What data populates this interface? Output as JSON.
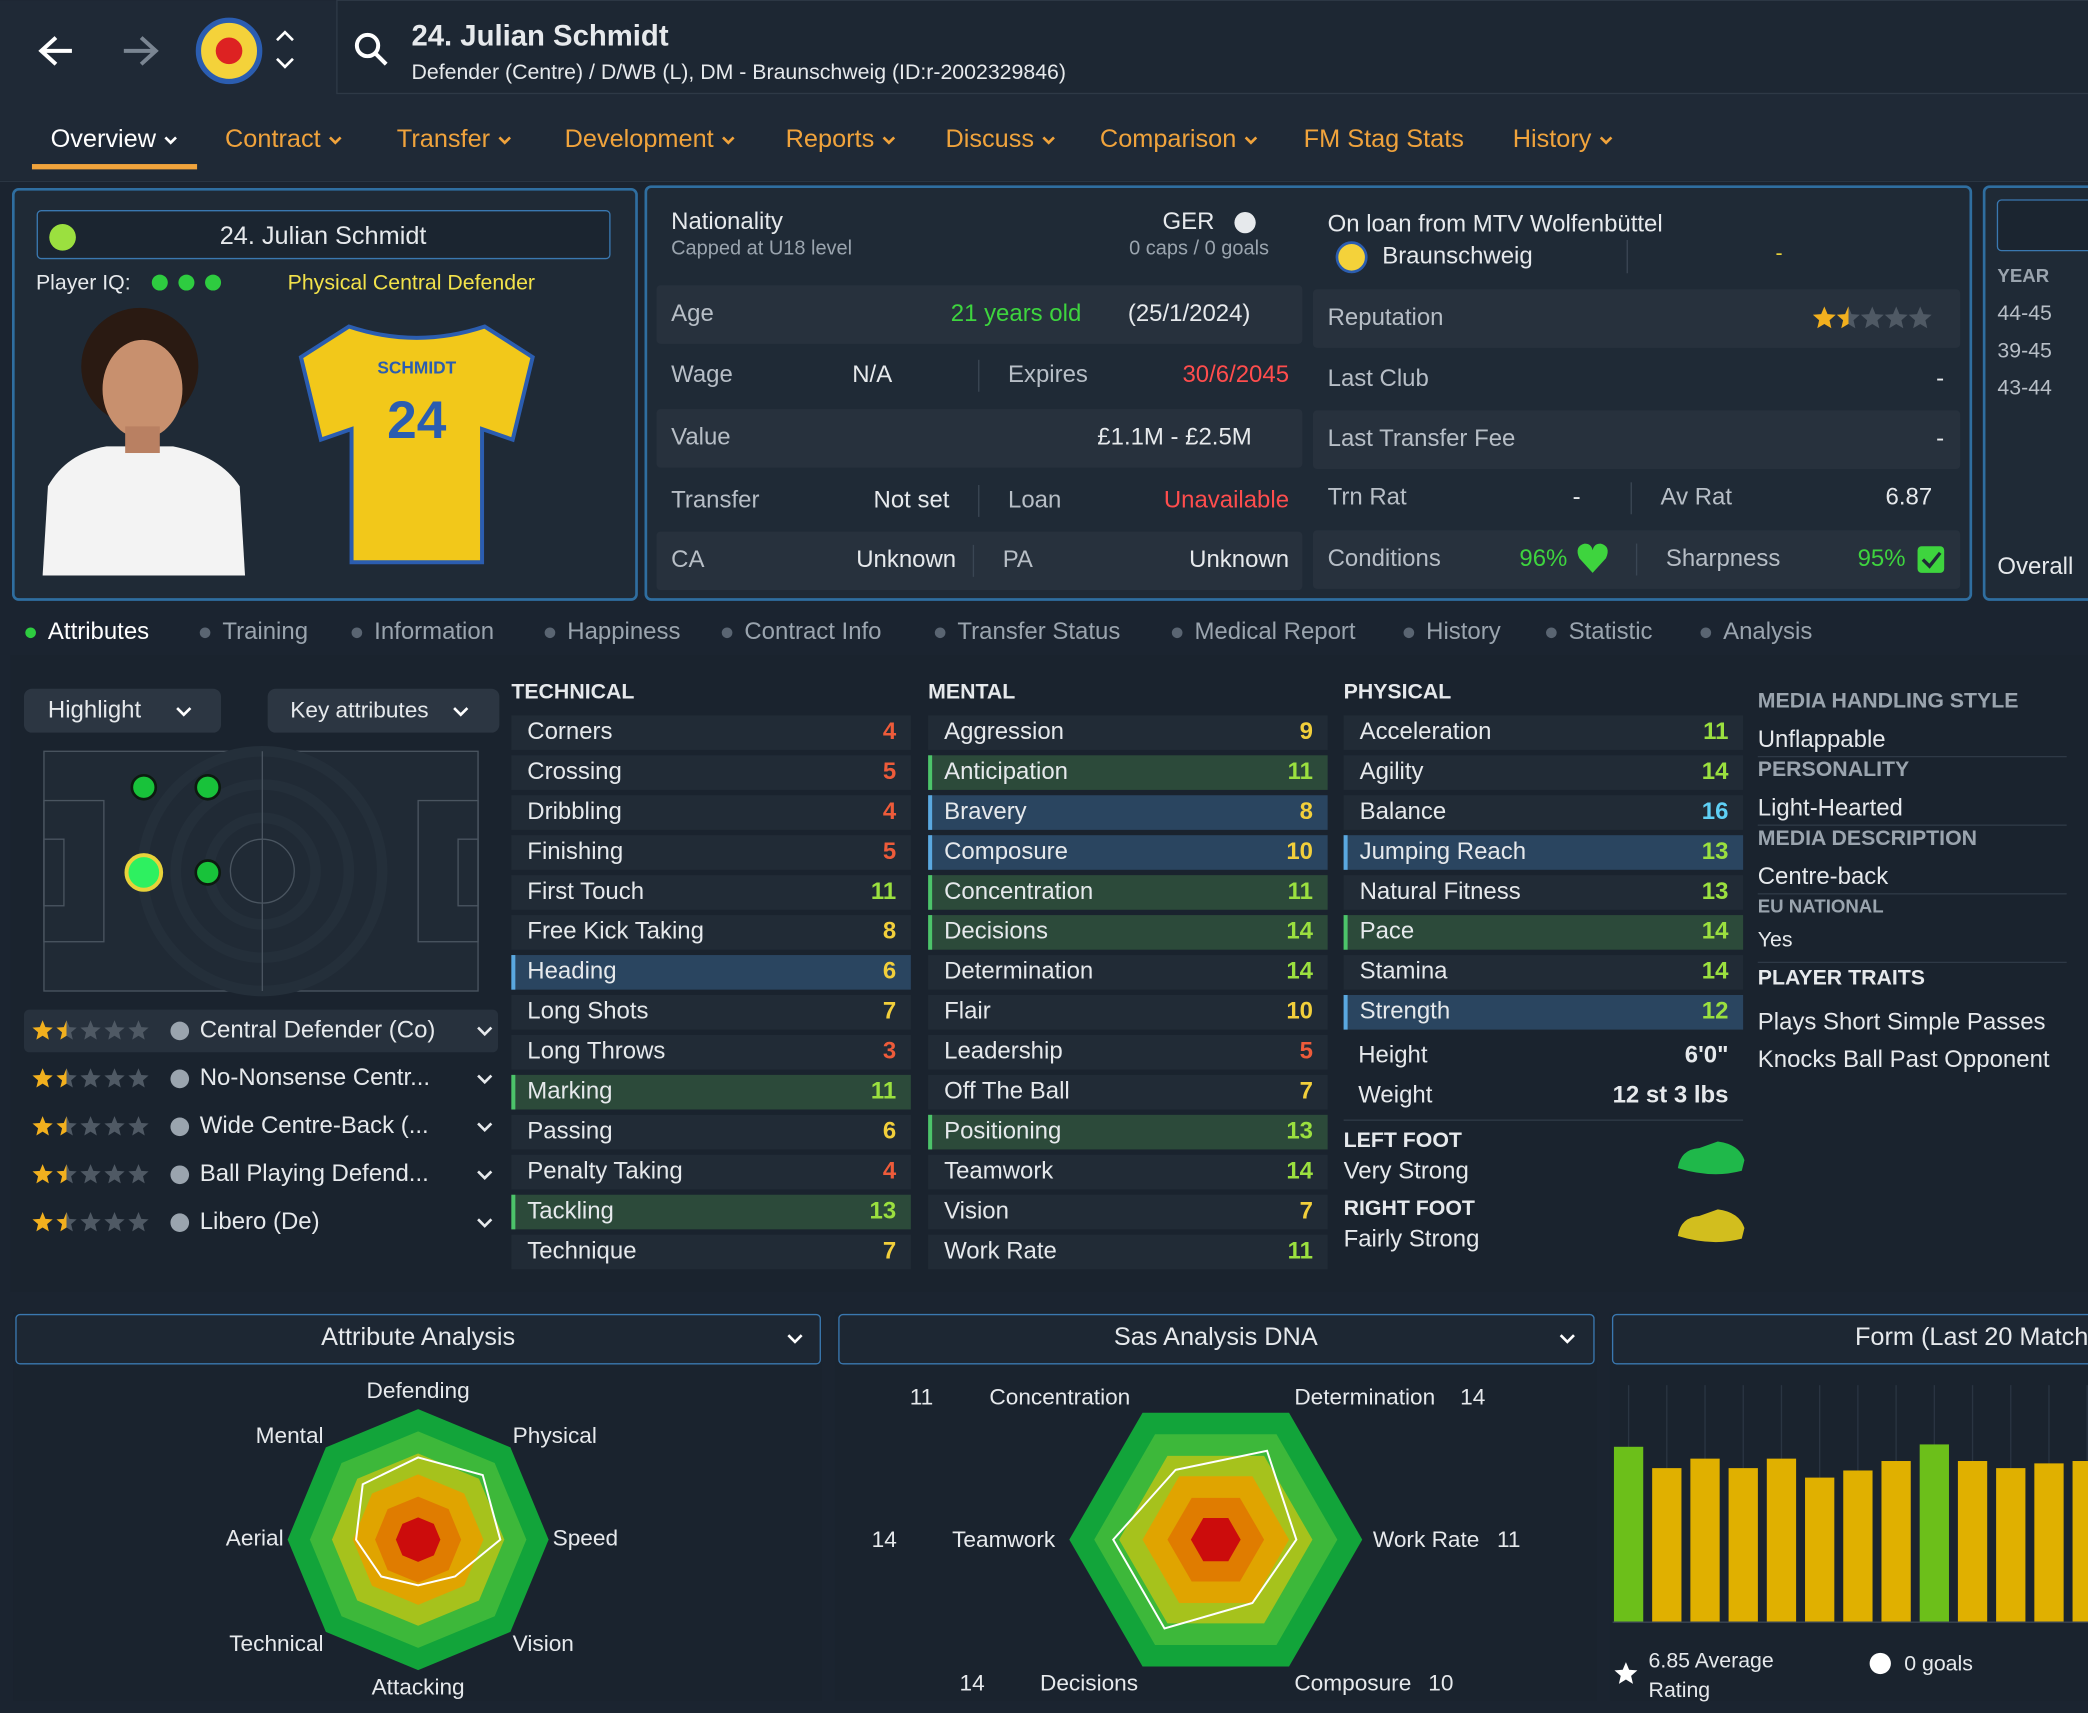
{
  "header": {
    "title": "24. Julian Schmidt",
    "subtitle": "Defender (Centre) / D/WB (L), DM - Braunschweig (ID:r-2002329846)"
  },
  "nav": {
    "items": [
      "Overview",
      "Contract",
      "Transfer",
      "Development",
      "Reports",
      "Discuss",
      "Comparison",
      "FM Stag Stats",
      "History"
    ]
  },
  "profile": {
    "name": "24. Julian Schmidt",
    "iq_label": "Player IQ:",
    "role": "Physical Central Defender",
    "shirt_name": "SCHMIDT",
    "shirt_number": 24
  },
  "info": {
    "nationality_label": "Nationality",
    "nationality_note": "Capped at U18 level",
    "nation": "GER",
    "caps": "0 caps / 0 goals",
    "loan_label": "On loan from MTV Wolfenbüttel",
    "loan_club": "Braunschweig",
    "loan_value": "-",
    "left": [
      {
        "label": "Age",
        "value": "21 years old",
        "extra": "(25/1/2024)"
      },
      {
        "label": "Wage",
        "value": "N/A",
        "label2": "Expires",
        "value2": "30/6/2045"
      },
      {
        "label": "Value",
        "value": "£1.1M - £2.5M"
      },
      {
        "label": "Transfer",
        "value": "Not set",
        "label2": "Loan",
        "value2": "Unavailable"
      },
      {
        "label": "CA",
        "value": "Unknown",
        "label2": "PA",
        "value2": "Unknown"
      }
    ],
    "right": [
      {
        "label": "Reputation",
        "stars": 1.5
      },
      {
        "label": "Last Club",
        "value": "-"
      },
      {
        "label": "Last Transfer Fee",
        "value": "-"
      },
      {
        "label": "Trn Rat",
        "value": "-",
        "label2": "Av Rat",
        "value2": 6.87
      },
      {
        "label": "Conditions",
        "value": "96%",
        "label2": "Sharpness",
        "value2": "95%"
      }
    ]
  },
  "history": {
    "header": "YEAR",
    "years": [
      "44-45",
      "39-45",
      "43-44"
    ],
    "footer": "Overall"
  },
  "tabs": {
    "items": [
      "Attributes",
      "Training",
      "Information",
      "Happiness",
      "Contract Info",
      "Transfer Status",
      "Medical Report",
      "History",
      "Statistic",
      "Analysis"
    ]
  },
  "attributes": {
    "highlight": "Highlight",
    "filter": "Key attributes",
    "roles": [
      {
        "name": "Central Defender (Co)",
        "stars": 1.5
      },
      {
        "name": "No-Nonsense Centr...",
        "stars": 1.5
      },
      {
        "name": "Wide Centre-Back (...",
        "stars": 1.5
      },
      {
        "name": "Ball Playing Defend...",
        "stars": 1.5
      },
      {
        "name": "Libero (De)",
        "stars": 1.5
      }
    ],
    "columns": [
      {
        "title": "TECHNICAL",
        "items": [
          {
            "name": "Corners",
            "value": 4
          },
          {
            "name": "Crossing",
            "value": 5
          },
          {
            "name": "Dribbling",
            "value": 4
          },
          {
            "name": "Finishing",
            "value": 5
          },
          {
            "name": "First Touch",
            "value": 11
          },
          {
            "name": "Free Kick Taking",
            "value": 8
          },
          {
            "name": "Heading",
            "value": 6,
            "highlight": "blue"
          },
          {
            "name": "Long Shots",
            "value": 7
          },
          {
            "name": "Long Throws",
            "value": 3
          },
          {
            "name": "Marking",
            "value": 11,
            "highlight": "green"
          },
          {
            "name": "Passing",
            "value": 6
          },
          {
            "name": "Penalty Taking",
            "value": 4
          },
          {
            "name": "Tackling",
            "value": 13,
            "highlight": "green"
          },
          {
            "name": "Technique",
            "value": 7
          }
        ]
      },
      {
        "title": "MENTAL",
        "items": [
          {
            "name": "Aggression",
            "value": 9
          },
          {
            "name": "Anticipation",
            "value": 11,
            "highlight": "green"
          },
          {
            "name": "Bravery",
            "value": 8,
            "highlight": "blue"
          },
          {
            "name": "Composure",
            "value": 10,
            "highlight": "blue"
          },
          {
            "name": "Concentration",
            "value": 11,
            "highlight": "green"
          },
          {
            "name": "Decisions",
            "value": 14,
            "highlight": "green"
          },
          {
            "name": "Determination",
            "value": 14
          },
          {
            "name": "Flair",
            "value": 10
          },
          {
            "name": "Leadership",
            "value": 5
          },
          {
            "name": "Off The Ball",
            "value": 7
          },
          {
            "name": "Positioning",
            "value": 13,
            "highlight": "green"
          },
          {
            "name": "Teamwork",
            "value": 14
          },
          {
            "name": "Vision",
            "value": 7
          },
          {
            "name": "Work Rate",
            "value": 11
          }
        ]
      },
      {
        "title": "PHYSICAL",
        "items": [
          {
            "name": "Acceleration",
            "value": 11
          },
          {
            "name": "Agility",
            "value": 14
          },
          {
            "name": "Balance",
            "value": 16
          },
          {
            "name": "Jumping Reach",
            "value": 13,
            "highlight": "blue"
          },
          {
            "name": "Natural Fitness",
            "value": 13
          },
          {
            "name": "Pace",
            "value": 14,
            "highlight": "green"
          },
          {
            "name": "Stamina",
            "value": 14
          },
          {
            "name": "Strength",
            "value": 12,
            "highlight": "blue"
          }
        ]
      }
    ],
    "height_label": "Height",
    "height": "6'0\"",
    "weight_label": "Weight",
    "weight": "12 st 3 lbs",
    "feet": [
      {
        "label": "LEFT FOOT",
        "value": "Very Strong",
        "color": "#1fb84a"
      },
      {
        "label": "RIGHT FOOT",
        "value": "Fairly Strong",
        "color": "#d2be1e"
      }
    ]
  },
  "details": {
    "facts": [
      {
        "label": "MEDIA HANDLING STYLE",
        "value": "Unflappable"
      },
      {
        "label": "PERSONALITY",
        "value": "Light-Hearted"
      },
      {
        "label": "MEDIA DESCRIPTION",
        "value": "Centre-back"
      },
      {
        "label": "EU NATIONAL",
        "value": "Yes"
      }
    ],
    "traits_title": "PLAYER TRAITS",
    "traits": [
      "Plays Short Simple Passes",
      "Knocks Ball Past Opponent"
    ]
  },
  "attribute_analysis": {
    "title": "Attribute Analysis",
    "labels": [
      "Defending",
      "Physical",
      "Speed",
      "Vision",
      "Attacking",
      "Technical",
      "Aerial",
      "Mental"
    ],
    "values": [
      12.6,
      14,
      12.6,
      8,
      7,
      8,
      9.5,
      12
    ],
    "rlim": [
      0,
      20
    ]
  },
  "dna": {
    "title": "Sas Analysis DNA",
    "labels": [
      "Concentration",
      "Determination",
      "Work Rate",
      "Composure",
      "Decisions",
      "Teamwork"
    ],
    "values": [
      11,
      14,
      11,
      10,
      14,
      14
    ],
    "rlim": [
      0,
      20
    ]
  },
  "form": {
    "title": "Form (Last 20 Match",
    "values": [
      7.4,
      6.5,
      6.9,
      6.5,
      6.9,
      6.1,
      6.4,
      6.8,
      7.5,
      6.8,
      6.5,
      6.7,
      6.8
    ],
    "ylim": [
      0,
      10
    ],
    "average": "6.85 Average Rating",
    "goals": "0 goals"
  }
}
